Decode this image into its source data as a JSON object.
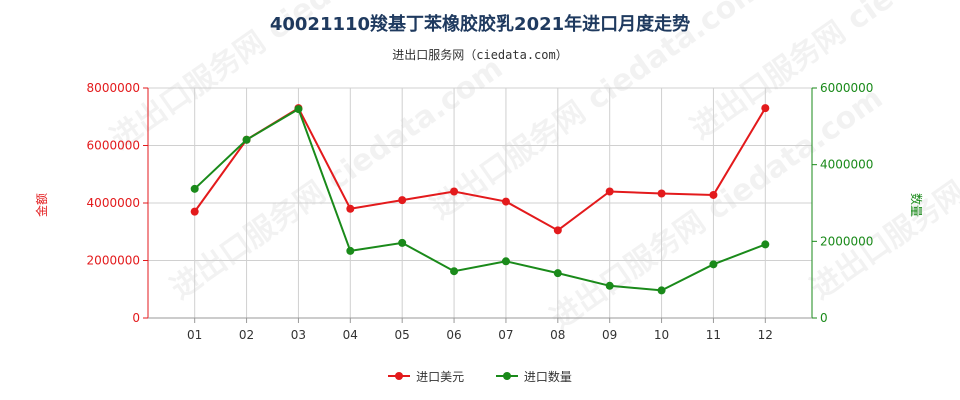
{
  "header": {
    "title": "40021110羧基丁苯橡胶胶乳2021年进口月度走势",
    "subtitle": "进出口服务网（ciedata.com）",
    "watermark": "进出口服务网 ciedata.com"
  },
  "chart_data": {
    "type": "line",
    "categories": [
      "01",
      "02",
      "03",
      "04",
      "05",
      "06",
      "07",
      "08",
      "09",
      "10",
      "11",
      "12"
    ],
    "y_left": {
      "label": "金额",
      "range": [
        0,
        8000000
      ],
      "ticks": [
        "0",
        "2000000",
        "4000000",
        "6000000",
        "8000000"
      ],
      "color": "#e31a1c"
    },
    "y_right": {
      "label": "数量",
      "range": [
        0,
        6000000
      ],
      "ticks": [
        "0",
        "2000000",
        "4000000",
        "6000000"
      ],
      "color": "#1a8a1a"
    },
    "grid": true,
    "legend_position": "bottom",
    "series": [
      {
        "name": "进口美元",
        "axis": "left",
        "color": "#e31a1c",
        "values": [
          3700000,
          6200000,
          7300000,
          3800000,
          4100000,
          4400000,
          4050000,
          3050000,
          4400000,
          4330000,
          4280000,
          7300000
        ]
      },
      {
        "name": "进口数量",
        "axis": "right",
        "color": "#1a8a1a",
        "values": [
          3370000,
          4650000,
          5450000,
          1750000,
          1960000,
          1220000,
          1480000,
          1170000,
          840000,
          720000,
          1400000,
          1920000
        ]
      }
    ]
  }
}
